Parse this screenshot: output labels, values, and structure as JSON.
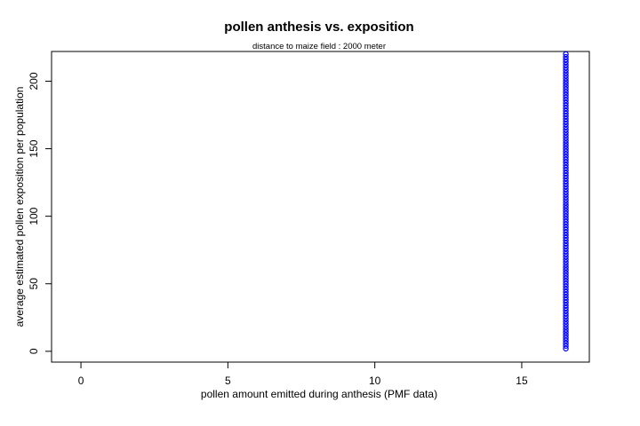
{
  "chart_data": {
    "type": "scatter",
    "title": "pollen anthesis vs. exposition",
    "subtitle": "distance to maize field :  2000 meter",
    "xlabel": "pollen amount emitted during anthesis (PMF data)",
    "ylabel": "average estimated pollen exposition per population",
    "xlim": [
      -1.0,
      17.3
    ],
    "ylim": [
      -8.0,
      222.0
    ],
    "xticks": [
      0,
      5,
      10,
      15
    ],
    "yticks": [
      0,
      50,
      100,
      150,
      200
    ],
    "grid": false,
    "legend": "none",
    "point_color": "#0000ff",
    "ylabel_color": "#0000cc",
    "series": [
      {
        "x_constant": 16.5,
        "y_min": 2,
        "y_max": 220,
        "y_step": 2
      }
    ]
  }
}
